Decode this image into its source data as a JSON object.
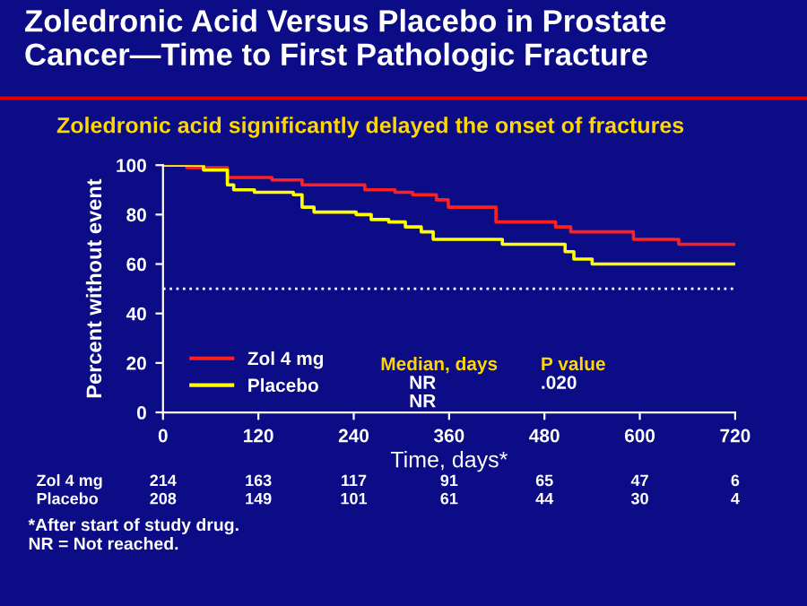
{
  "chart_data": {
    "type": "step",
    "title": "Zoledronic Acid Versus Placebo in Prostate Cancer—Time to First Pathologic Fracture",
    "subtitle": "Zoledronic acid significantly delayed the onset of fractures",
    "xlabel": "Time, days*",
    "ylabel": "Percent without event",
    "xlim": [
      0,
      720
    ],
    "xticks": [
      0,
      120,
      240,
      360,
      480,
      600,
      720
    ],
    "ylim": [
      0,
      100
    ],
    "yticks": [
      0,
      20,
      40,
      60,
      80,
      100
    ],
    "series": [
      {
        "name": "Zol 4 mg",
        "color": "#ff2020",
        "x": [
          0,
          30,
          81,
          137,
          175,
          254,
          292,
          314,
          344,
          359,
          419,
          494,
          513,
          592,
          649,
          720
        ],
        "values": [
          100,
          99,
          95,
          94,
          92,
          90,
          89,
          88,
          86,
          83,
          77,
          75,
          73,
          70,
          68,
          68
        ]
      },
      {
        "name": "Placebo",
        "color": "#ffff00",
        "x": [
          0,
          51,
          81,
          89,
          115,
          164,
          175,
          190,
          243,
          262,
          284,
          305,
          325,
          340,
          427,
          506,
          517,
          540,
          720
        ],
        "values": [
          100,
          98,
          92,
          90,
          89,
          88,
          83,
          81,
          80,
          78,
          77,
          75,
          73,
          70,
          68,
          65,
          62,
          60,
          60
        ]
      }
    ],
    "ref_lines": [
      {
        "axis": "y",
        "value": 50,
        "color": "#ffffff",
        "line_style": "dotted"
      }
    ],
    "legend": "bottom left",
    "grid": false,
    "marker": "none",
    "line_style": "solid",
    "annotations": [
      "Median, days",
      "P value",
      "NR",
      ".020",
      "NR",
      "Zol 4 mg",
      "214",
      "163",
      "117",
      "91",
      "65",
      "47",
      "6",
      "Placebo",
      "208",
      "149",
      "101",
      "61",
      "44",
      "30",
      "4",
      "*After start of study drug.\nNR = Not reached."
    ]
  }
}
